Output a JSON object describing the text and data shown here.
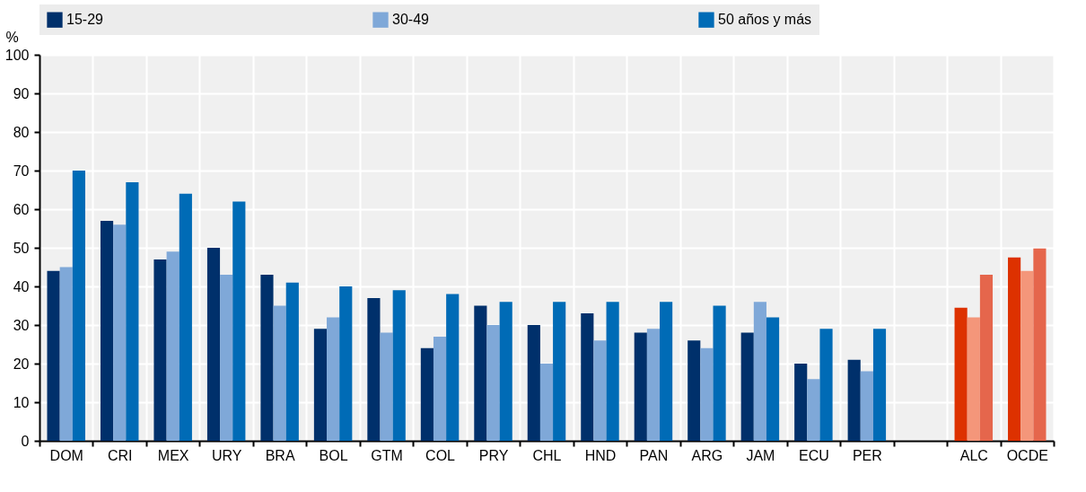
{
  "chart_data": {
    "type": "bar",
    "ylabel": "%",
    "categories": [
      "DOM",
      "CRI",
      "MEX",
      "URY",
      "BRA",
      "BOL",
      "GTM",
      "COL",
      "PRY",
      "CHL",
      "HND",
      "PAN",
      "ARG",
      "JAM",
      "ECU",
      "PER",
      null,
      "ALC",
      "OCDE"
    ],
    "series": [
      {
        "name": "15-29",
        "color": "#00306b",
        "colors": [
          "#00306b",
          "#00306b",
          "#00306b",
          "#00306b",
          "#00306b",
          "#00306b",
          "#00306b",
          "#00306b",
          "#00306b",
          "#00306b",
          "#00306b",
          "#00306b",
          "#00306b",
          "#00306b",
          "#00306b",
          "#00306b",
          null,
          "#dd3100",
          "#dd3100"
        ],
        "values": [
          44,
          57,
          47,
          50,
          43,
          29,
          37,
          24,
          35,
          30,
          33,
          28,
          26,
          28,
          20,
          21,
          null,
          34.5,
          47.5
        ]
      },
      {
        "name": "30-49",
        "color": "#7fa8d8",
        "colors": [
          "#7fa8d8",
          "#7fa8d8",
          "#7fa8d8",
          "#7fa8d8",
          "#7fa8d8",
          "#7fa8d8",
          "#7fa8d8",
          "#7fa8d8",
          "#7fa8d8",
          "#7fa8d8",
          "#7fa8d8",
          "#7fa8d8",
          "#7fa8d8",
          "#7fa8d8",
          "#7fa8d8",
          "#7fa8d8",
          null,
          "#f4967a",
          "#f4967a"
        ],
        "values": [
          45,
          56,
          49,
          43,
          35,
          32,
          28,
          27,
          30,
          20,
          26,
          29,
          24,
          36,
          16,
          18,
          null,
          32,
          44
        ]
      },
      {
        "name": "50 años y más",
        "color": "#006bb6",
        "colors": [
          "#006bb6",
          "#006bb6",
          "#006bb6",
          "#006bb6",
          "#006bb6",
          "#006bb6",
          "#006bb6",
          "#006bb6",
          "#006bb6",
          "#006bb6",
          "#006bb6",
          "#006bb6",
          "#006bb6",
          "#006bb6",
          "#006bb6",
          "#006bb6",
          null,
          "#e5664c",
          "#e5664c"
        ],
        "values": [
          70,
          67,
          64,
          62,
          41,
          40,
          39,
          38,
          36,
          36,
          36,
          36,
          35,
          32,
          29,
          29,
          null,
          43,
          49.8
        ]
      }
    ],
    "ylim": [
      0,
      100
    ],
    "yticks": [
      0,
      10,
      20,
      30,
      40,
      50,
      60,
      70,
      80,
      90,
      100
    ],
    "grid": true,
    "legend": "top"
  }
}
